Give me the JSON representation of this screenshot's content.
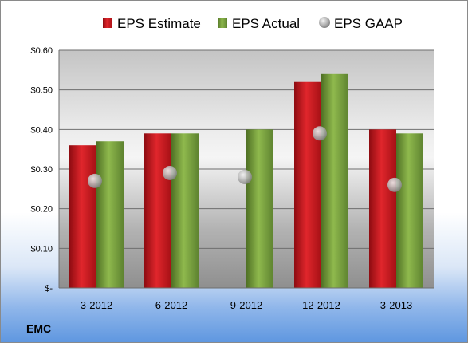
{
  "chart_data": {
    "type": "bar",
    "company": "EMC",
    "categories": [
      "3-2012",
      "6-2012",
      "9-2012",
      "12-2012",
      "3-2013"
    ],
    "series": [
      {
        "name": "EPS Estimate",
        "kind": "bar",
        "color": "#c8161d",
        "values": [
          0.36,
          0.39,
          null,
          0.52,
          0.4
        ]
      },
      {
        "name": "EPS Actual",
        "kind": "bar",
        "color": "#77a03a",
        "values": [
          0.37,
          0.39,
          0.4,
          0.54,
          0.39
        ]
      },
      {
        "name": "EPS GAAP",
        "kind": "marker",
        "color": "#a9a9a9",
        "values": [
          0.27,
          0.29,
          0.28,
          0.39,
          0.26
        ]
      }
    ],
    "ylim": [
      0,
      0.6
    ],
    "yticks": [
      0,
      0.1,
      0.2,
      0.3,
      0.4,
      0.5,
      0.6
    ],
    "ytick_labels": [
      "$-",
      "$0.10",
      "$0.20",
      "$0.30",
      "$0.40",
      "$0.50",
      "$0.60"
    ],
    "grid": true,
    "legend_position": "top"
  }
}
